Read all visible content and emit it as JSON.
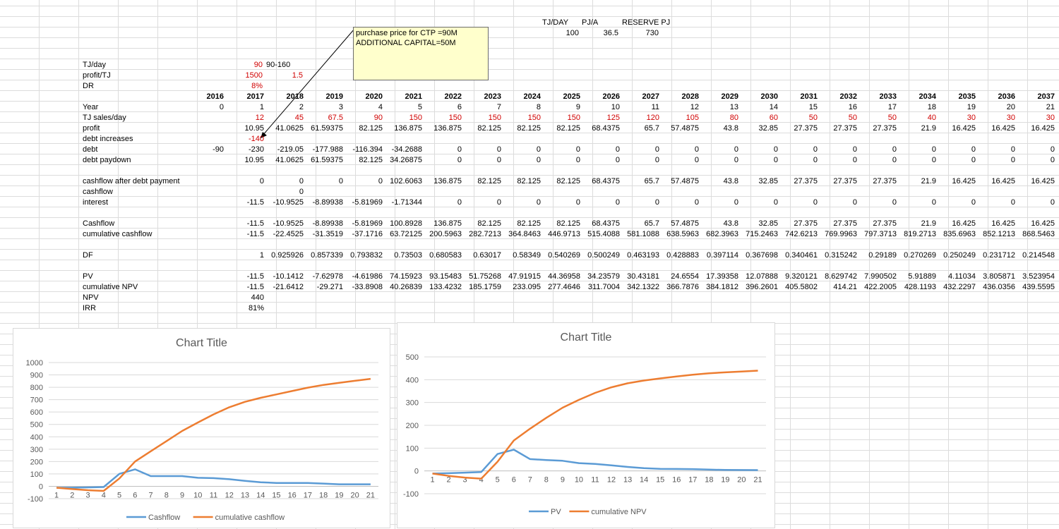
{
  "top_info": {
    "headers": [
      "TJ/DAY",
      "PJ/A",
      "RESERVE PJ"
    ],
    "values": [
      "100",
      "36.5",
      "730"
    ]
  },
  "comment": {
    "line1": "purchase price for CTP =90M",
    "line2": "ADDITIONAL CAPITAL=50M"
  },
  "params": {
    "tj_day_label": "TJ/day",
    "tj_day_value": "90",
    "tj_day_range": "90-160",
    "profit_tj_label": "profit/TJ",
    "profit_tj_value": "1500",
    "profit_tj_value2": "1.5",
    "dr_label": "DR",
    "dr_value": "8%"
  },
  "years": [
    "2016",
    "2017",
    "2018",
    "2019",
    "2020",
    "2021",
    "2022",
    "2023",
    "2024",
    "2025",
    "2026",
    "2027",
    "2028",
    "2029",
    "2030",
    "2031",
    "2032",
    "2033",
    "2034",
    "2035",
    "2036",
    "2037"
  ],
  "rows": [
    {
      "label": "Year",
      "cells": [
        "0",
        "1",
        "2",
        "3",
        "4",
        "5",
        "6",
        "7",
        "8",
        "9",
        "10",
        "11",
        "12",
        "13",
        "14",
        "15",
        "16",
        "17",
        "18",
        "19",
        "20",
        "21"
      ]
    },
    {
      "label": "TJ sales/day",
      "red": true,
      "cells": [
        "",
        "12",
        "45",
        "67.5",
        "90",
        "150",
        "150",
        "150",
        "150",
        "150",
        "125",
        "120",
        "105",
        "80",
        "60",
        "50",
        "50",
        "50",
        "40",
        "30",
        "30",
        "30"
      ]
    },
    {
      "label": "profit",
      "cells": [
        "",
        "10.95",
        "41.0625",
        "61.59375",
        "82.125",
        "136.875",
        "136.875",
        "82.125",
        "82.125",
        "82.125",
        "68.4375",
        "65.7",
        "57.4875",
        "43.8",
        "32.85",
        "27.375",
        "27.375",
        "27.375",
        "21.9",
        "16.425",
        "16.425",
        "16.425"
      ]
    },
    {
      "label": "debt increases",
      "red": true,
      "cells": [
        "",
        "-140",
        "",
        "",
        "",
        "",
        "",
        "",
        "",
        "",
        "",
        "",
        "",
        "",
        "",
        "",
        "",
        "",
        "",
        "",
        "",
        ""
      ]
    },
    {
      "label": "debt",
      "cells": [
        "-90",
        "-230",
        "-219.05",
        "-177.988",
        "-116.394",
        "-34.2688",
        "0",
        "0",
        "0",
        "0",
        "0",
        "0",
        "0",
        "0",
        "0",
        "0",
        "0",
        "0",
        "0",
        "0",
        "0",
        "0"
      ]
    },
    {
      "label": "debt paydown",
      "cells": [
        "",
        "10.95",
        "41.0625",
        "61.59375",
        "82.125",
        "34.26875",
        "0",
        "0",
        "0",
        "0",
        "0",
        "0",
        "0",
        "0",
        "0",
        "0",
        "0",
        "0",
        "0",
        "0",
        "0",
        "0"
      ]
    },
    {
      "label": "",
      "cells": []
    },
    {
      "label": "cashflow after debt payment",
      "cells": [
        "",
        "0",
        "0",
        "0",
        "0",
        "102.6063",
        "136.875",
        "82.125",
        "82.125",
        "82.125",
        "68.4375",
        "65.7",
        "57.4875",
        "43.8",
        "32.85",
        "27.375",
        "27.375",
        "27.375",
        "21.9",
        "16.425",
        "16.425",
        "16.425"
      ]
    },
    {
      "label": "cashflow",
      "cells": [
        "",
        "",
        "0",
        "",
        "",
        "",
        "",
        "",
        "",
        "",
        "",
        "",
        "",
        "",
        "",
        "",
        "",
        "",
        "",
        "",
        "",
        ""
      ]
    },
    {
      "label": "interest",
      "cells": [
        "",
        "-11.5",
        "-10.9525",
        "-8.89938",
        "-5.81969",
        "-1.71344",
        "0",
        "0",
        "0",
        "0",
        "0",
        "0",
        "0",
        "0",
        "0",
        "0",
        "0",
        "0",
        "0",
        "0",
        "0",
        "0"
      ]
    },
    {
      "label": "",
      "cells": []
    },
    {
      "label": "Cashflow",
      "cells": [
        "",
        "-11.5",
        "-10.9525",
        "-8.89938",
        "-5.81969",
        "100.8928",
        "136.875",
        "82.125",
        "82.125",
        "82.125",
        "68.4375",
        "65.7",
        "57.4875",
        "43.8",
        "32.85",
        "27.375",
        "27.375",
        "27.375",
        "21.9",
        "16.425",
        "16.425",
        "16.425"
      ]
    },
    {
      "label": "cumulative cashflow",
      "cells": [
        "",
        "-11.5",
        "-22.4525",
        "-31.3519",
        "-37.1716",
        "63.72125",
        "200.5963",
        "282.7213",
        "364.8463",
        "446.9713",
        "515.4088",
        "581.1088",
        "638.5963",
        "682.3963",
        "715.2463",
        "742.6213",
        "769.9963",
        "797.3713",
        "819.2713",
        "835.6963",
        "852.1213",
        "868.5463"
      ]
    },
    {
      "label": "",
      "cells": []
    },
    {
      "label": "DF",
      "cells": [
        "",
        "1",
        "0.925926",
        "0.857339",
        "0.793832",
        "0.73503",
        "0.680583",
        "0.63017",
        "0.58349",
        "0.540269",
        "0.500249",
        "0.463193",
        "0.428883",
        "0.397114",
        "0.367698",
        "0.340461",
        "0.315242",
        "0.29189",
        "0.270269",
        "0.250249",
        "0.231712",
        "0.214548"
      ]
    },
    {
      "label": "",
      "cells": []
    },
    {
      "label": "PV",
      "cells": [
        "",
        "-11.5",
        "-10.1412",
        "-7.62978",
        "-4.61986",
        "74.15923",
        "93.15483",
        "51.75268",
        "47.91915",
        "44.36958",
        "34.23579",
        "30.43181",
        "24.6554",
        "17.39358",
        "12.07888",
        "9.320121",
        "8.629742",
        "7.990502",
        "5.91889",
        "4.11034",
        "3.805871",
        "3.523954"
      ]
    },
    {
      "label": "cumulative NPV",
      "cells": [
        "",
        "-11.5",
        "-21.6412",
        "-29.271",
        "-33.8908",
        "40.26839",
        "133.4232",
        "185.1759",
        "233.095",
        "277.4646",
        "311.7004",
        "342.1322",
        "366.7876",
        "384.1812",
        "396.2601",
        "405.5802",
        "414.21",
        "422.2005",
        "428.1193",
        "432.2297",
        "436.0356",
        "439.5595"
      ]
    },
    {
      "label": "NPV",
      "cells": [
        "",
        "440"
      ]
    },
    {
      "label": "IRR",
      "cells": [
        "",
        "81%"
      ]
    }
  ],
  "charts": [
    {
      "title": "Chart Title",
      "categories": [
        "1",
        "2",
        "3",
        "4",
        "5",
        "6",
        "7",
        "8",
        "9",
        "10",
        "11",
        "12",
        "13",
        "14",
        "15",
        "16",
        "17",
        "18",
        "19",
        "20",
        "21"
      ],
      "y_ticks": [
        "1000",
        "900",
        "800",
        "700",
        "600",
        "500",
        "400",
        "300",
        "200",
        "100",
        "0",
        "-100"
      ],
      "legend": [
        "Cashflow",
        "cumulative cashflow"
      ]
    },
    {
      "title": "Chart Title",
      "categories": [
        "1",
        "2",
        "3",
        "4",
        "5",
        "6",
        "7",
        "8",
        "9",
        "10",
        "11",
        "12",
        "13",
        "14",
        "15",
        "16",
        "17",
        "18",
        "19",
        "20",
        "21"
      ],
      "y_ticks": [
        "500",
        "400",
        "300",
        "200",
        "100",
        "0",
        "-100"
      ],
      "legend": [
        "PV",
        "cumulative NPV"
      ]
    }
  ],
  "chart_data": [
    {
      "type": "line",
      "title": "Chart Title",
      "x": [
        1,
        2,
        3,
        4,
        5,
        6,
        7,
        8,
        9,
        10,
        11,
        12,
        13,
        14,
        15,
        16,
        17,
        18,
        19,
        20,
        21
      ],
      "ylim": [
        -100,
        1000
      ],
      "grid": true,
      "legend_position": "bottom",
      "series": [
        {
          "name": "Cashflow",
          "color": "#5b9bd5",
          "values": [
            -11.5,
            -10.9525,
            -8.89938,
            -5.81969,
            100.8928,
            136.875,
            82.125,
            82.125,
            82.125,
            68.4375,
            65.7,
            57.4875,
            43.8,
            32.85,
            27.375,
            27.375,
            27.375,
            21.9,
            16.425,
            16.425,
            16.425
          ]
        },
        {
          "name": "cumulative cashflow",
          "color": "#ed7d31",
          "values": [
            -11.5,
            -22.4525,
            -31.3519,
            -37.1716,
            63.72125,
            200.5963,
            282.7213,
            364.8463,
            446.9713,
            515.4088,
            581.1088,
            638.5963,
            682.3963,
            715.2463,
            742.6213,
            769.9963,
            797.3713,
            819.2713,
            835.6963,
            852.1213,
            868.5463
          ]
        }
      ]
    },
    {
      "type": "line",
      "title": "Chart Title",
      "x": [
        1,
        2,
        3,
        4,
        5,
        6,
        7,
        8,
        9,
        10,
        11,
        12,
        13,
        14,
        15,
        16,
        17,
        18,
        19,
        20,
        21
      ],
      "ylim": [
        -100,
        500
      ],
      "grid": true,
      "legend_position": "bottom",
      "series": [
        {
          "name": "PV",
          "color": "#5b9bd5",
          "values": [
            -11.5,
            -10.1412,
            -7.62978,
            -4.61986,
            74.15923,
            93.15483,
            51.75268,
            47.91915,
            44.36958,
            34.23579,
            30.43181,
            24.6554,
            17.39358,
            12.07888,
            9.320121,
            8.629742,
            7.990502,
            5.91889,
            4.11034,
            3.805871,
            3.523954
          ]
        },
        {
          "name": "cumulative NPV",
          "color": "#ed7d31",
          "values": [
            -11.5,
            -21.6412,
            -29.271,
            -33.8908,
            40.26839,
            133.4232,
            185.1759,
            233.095,
            277.4646,
            311.7004,
            342.1322,
            366.7876,
            384.1812,
            396.2601,
            405.5802,
            414.21,
            422.2005,
            428.1193,
            432.2297,
            436.0356,
            439.5595
          ]
        }
      ]
    }
  ]
}
